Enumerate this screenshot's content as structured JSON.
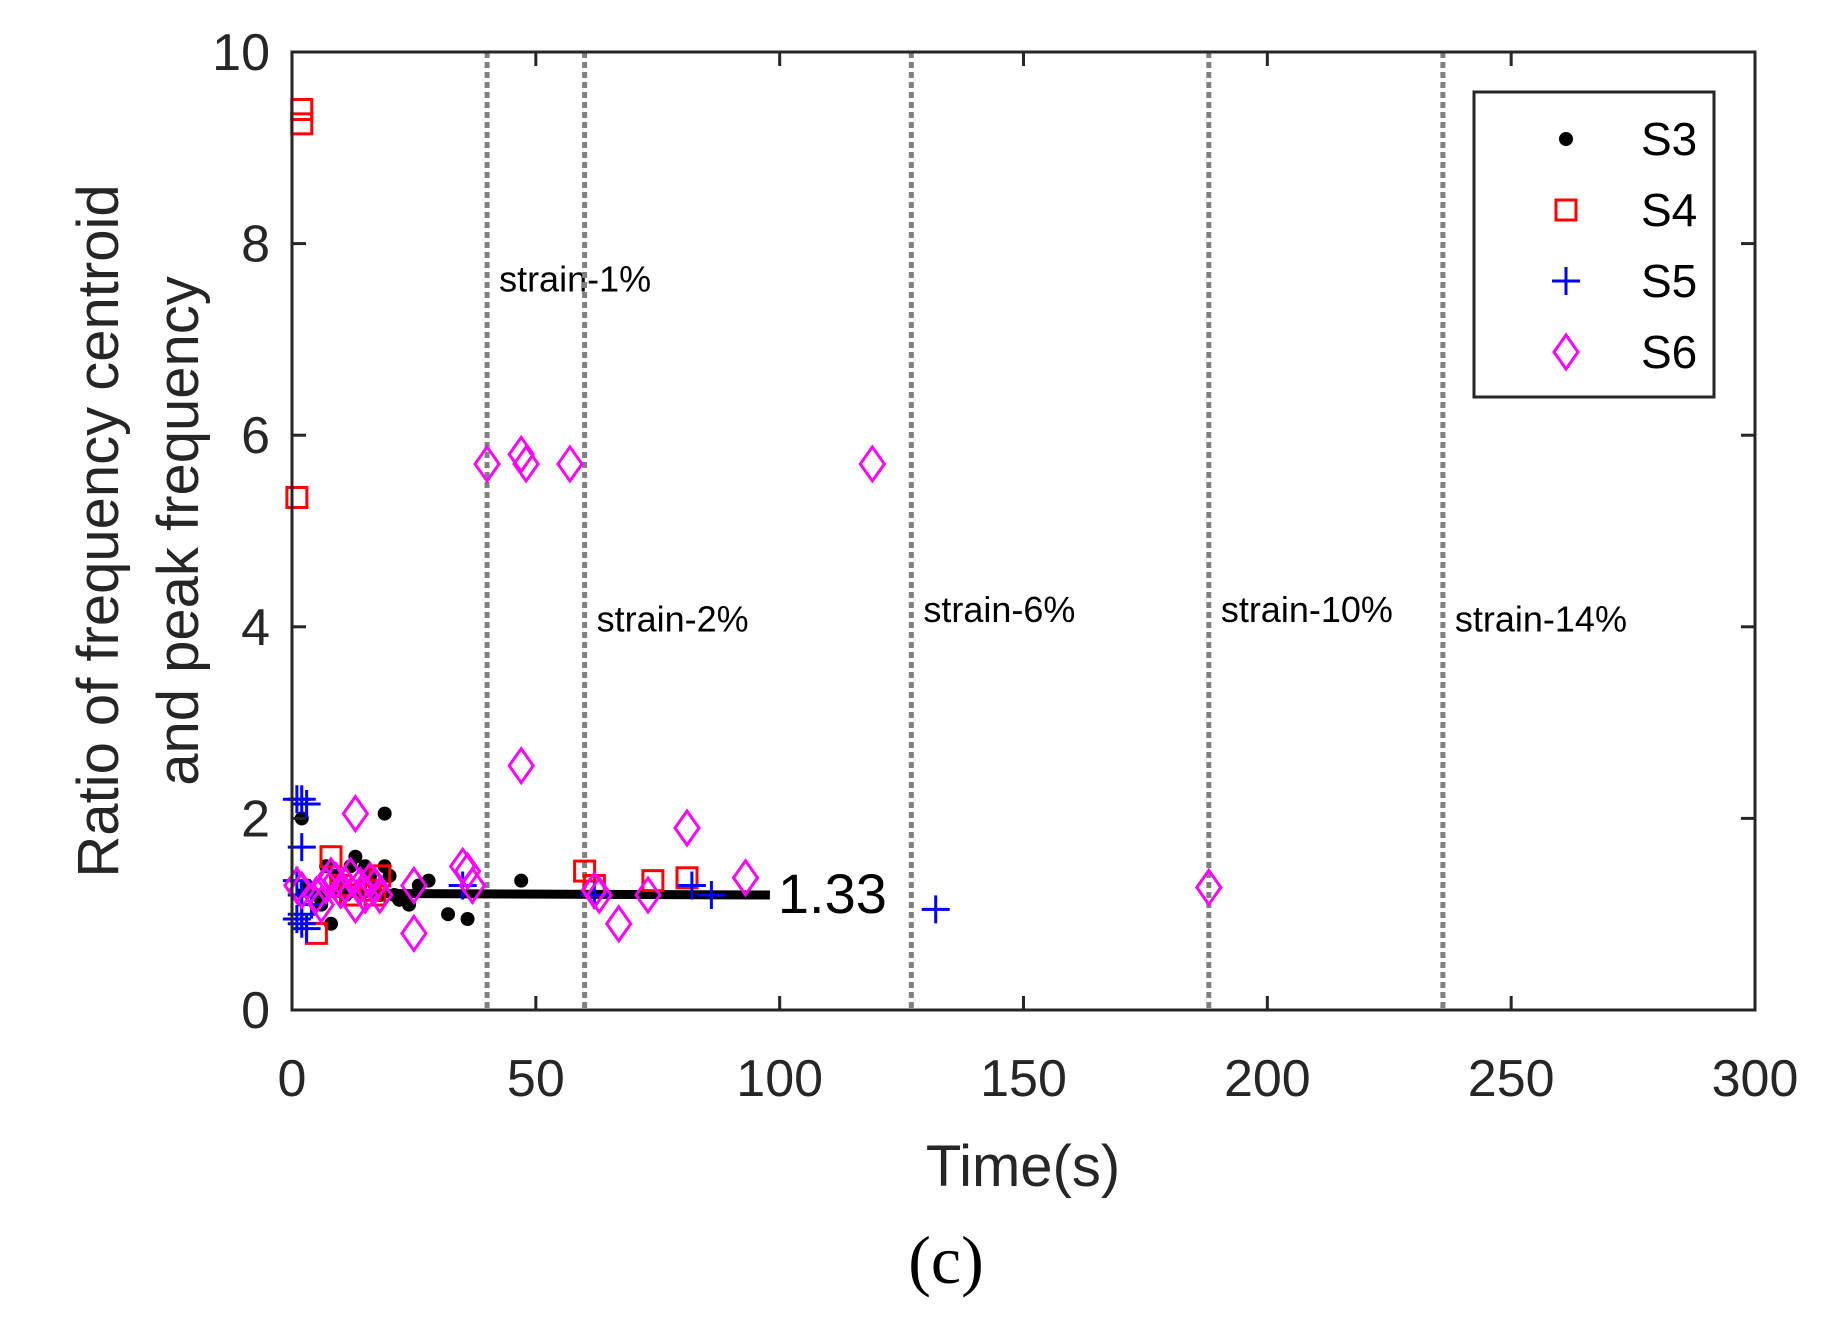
{
  "chart_data": {
    "type": "scatter",
    "xlabel": "Time(s)",
    "ylabel_lines": [
      "Ratio of frequency centroid",
      "and peak frequency"
    ],
    "xlim": [
      0,
      300
    ],
    "ylim": [
      0,
      10
    ],
    "xticks": [
      0,
      50,
      100,
      150,
      200,
      250,
      300
    ],
    "yticks": [
      0,
      2,
      4,
      6,
      8,
      10
    ],
    "grid": false,
    "legend_position": "top-right",
    "caption": "(c)",
    "strain_markers": [
      {
        "x": 40,
        "label": "strain-1%",
        "label_y": 7.5
      },
      {
        "x": 60,
        "label": "strain-2%",
        "label_y": 3.95
      },
      {
        "x": 127,
        "label": "strain-6%",
        "label_y": 4.05
      },
      {
        "x": 188,
        "label": "strain-10%",
        "label_y": 4.05
      },
      {
        "x": 236,
        "label": "strain-14%",
        "label_y": 3.95
      }
    ],
    "trend_line": {
      "x": [
        1,
        98
      ],
      "y": [
        1.22,
        1.2
      ],
      "label": "1.33"
    },
    "series": [
      {
        "name": "S3",
        "marker": "dot",
        "color": "#000000",
        "points": [
          [
            2,
            2.0
          ],
          [
            3,
            1.3
          ],
          [
            5,
            1.2
          ],
          [
            6,
            1.1
          ],
          [
            7,
            1.5
          ],
          [
            8,
            0.9
          ],
          [
            9,
            1.4
          ],
          [
            10,
            1.3
          ],
          [
            11,
            1.2
          ],
          [
            12,
            1.5
          ],
          [
            13,
            1.6
          ],
          [
            14,
            1.3
          ],
          [
            15,
            1.5
          ],
          [
            16,
            1.4
          ],
          [
            17,
            1.3
          ],
          [
            18,
            1.2
          ],
          [
            19,
            2.05
          ],
          [
            19,
            1.5
          ],
          [
            20,
            1.4
          ],
          [
            21,
            1.2
          ],
          [
            22,
            1.15
          ],
          [
            24,
            1.1
          ],
          [
            26,
            1.3
          ],
          [
            28,
            1.35
          ],
          [
            32,
            1.0
          ],
          [
            36,
            0.95
          ],
          [
            47,
            1.35
          ]
        ]
      },
      {
        "name": "S4",
        "marker": "square",
        "color": "#ff0000",
        "points": [
          [
            2,
            9.4
          ],
          [
            2,
            9.25
          ],
          [
            1,
            5.35
          ],
          [
            5,
            0.8
          ],
          [
            8,
            1.6
          ],
          [
            10,
            1.3
          ],
          [
            12,
            1.2
          ],
          [
            17,
            1.2
          ],
          [
            18,
            1.4
          ],
          [
            60,
            1.45
          ],
          [
            74,
            1.35
          ],
          [
            81,
            1.38
          ],
          [
            62,
            1.3
          ],
          [
            16,
            1.25
          ]
        ]
      },
      {
        "name": "S5",
        "marker": "plus",
        "color": "#0000ff",
        "points": [
          [
            1,
            2.2
          ],
          [
            2,
            2.2
          ],
          [
            3,
            2.15
          ],
          [
            2,
            1.7
          ],
          [
            1,
            1.35
          ],
          [
            2,
            1.2
          ],
          [
            1,
            0.95
          ],
          [
            2,
            0.9
          ],
          [
            3,
            0.85
          ],
          [
            2,
            1.0
          ],
          [
            4,
            1.1
          ],
          [
            35,
            1.3
          ],
          [
            62,
            1.2
          ],
          [
            82,
            1.3
          ],
          [
            86,
            1.2
          ],
          [
            132,
            1.05
          ]
        ]
      },
      {
        "name": "S6",
        "marker": "diamond",
        "color": "#ff00ff",
        "points": [
          [
            1,
            1.3
          ],
          [
            2,
            1.25
          ],
          [
            5,
            1.2
          ],
          [
            6,
            1.1
          ],
          [
            7,
            1.3
          ],
          [
            8,
            1.4
          ],
          [
            9,
            1.35
          ],
          [
            10,
            1.25
          ],
          [
            11,
            1.3
          ],
          [
            12,
            1.4
          ],
          [
            13,
            1.1
          ],
          [
            14,
            1.3
          ],
          [
            15,
            1.2
          ],
          [
            16,
            1.35
          ],
          [
            17,
            1.3
          ],
          [
            18,
            1.2
          ],
          [
            13,
            2.05
          ],
          [
            25,
            0.8
          ],
          [
            25,
            1.3
          ],
          [
            35,
            1.5
          ],
          [
            36,
            1.45
          ],
          [
            37,
            1.3
          ],
          [
            40,
            5.7
          ],
          [
            47,
            5.8
          ],
          [
            48,
            5.7
          ],
          [
            57,
            5.7
          ],
          [
            47,
            2.55
          ],
          [
            62,
            1.25
          ],
          [
            63,
            1.2
          ],
          [
            67,
            0.9
          ],
          [
            73,
            1.2
          ],
          [
            81,
            1.9
          ],
          [
            93,
            1.38
          ],
          [
            119,
            5.7
          ],
          [
            188,
            1.28
          ]
        ]
      }
    ]
  }
}
